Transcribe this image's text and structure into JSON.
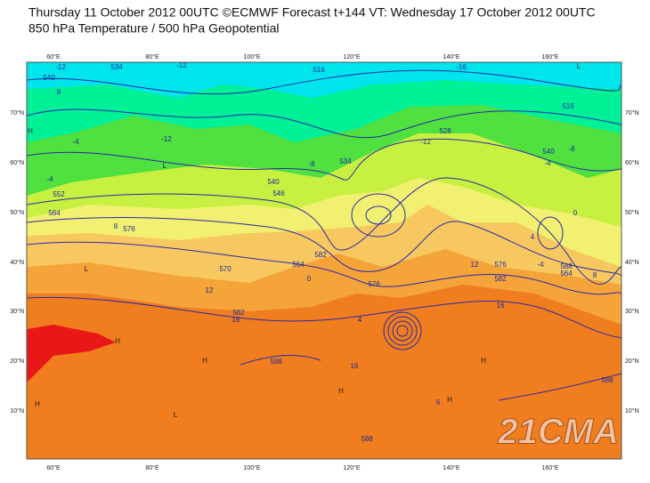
{
  "header": {
    "title": "Thursday 11 October 2012 00UTC ©ECMWF Forecast t+144 VT: Wednesday 17 October 2012 00UTC",
    "subtitle": "850 hPa Temperature / 500 hPa Geopotential"
  },
  "map": {
    "lon_labels": [
      "60°E",
      "80°E",
      "100°E",
      "120°E",
      "140°E",
      "160°E"
    ],
    "lat_labels": [
      "70°N",
      "60°N",
      "50°N",
      "40°N",
      "30°N",
      "20°N",
      "10°N"
    ],
    "contour_labels": [
      "-12",
      "534",
      "-12",
      "516",
      "-16",
      "540",
      "8",
      "-4",
      "-12",
      "-12",
      "528",
      "534",
      "540",
      "546",
      "-8",
      "-4",
      "552",
      "564",
      "8",
      "576",
      "570",
      "12",
      "582",
      "564",
      "0",
      "576",
      "12",
      "576",
      "582",
      "16",
      "582",
      "16",
      "588",
      "16",
      "4",
      "540",
      "-4",
      "0",
      "4",
      "-4",
      "588",
      "564",
      "8",
      "588",
      "6",
      "588",
      "516",
      "-8"
    ],
    "pressure_marks": [
      "L",
      "L",
      "L",
      "H",
      "H",
      "H",
      "H",
      "H",
      "L",
      "H",
      "H"
    ],
    "watermark": "21CMA"
  }
}
